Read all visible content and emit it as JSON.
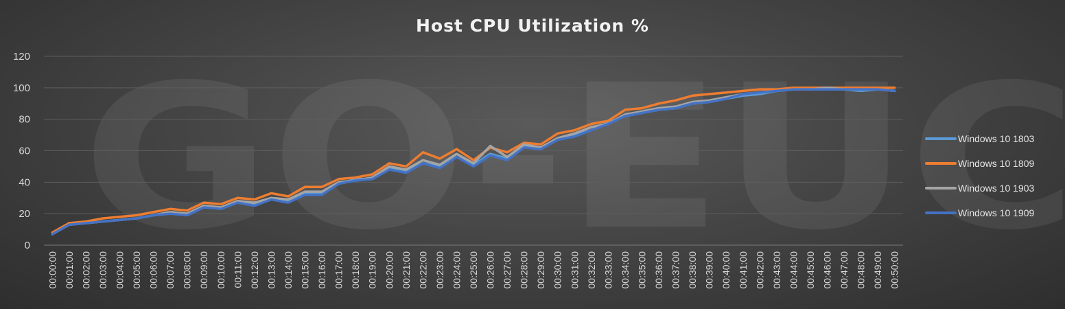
{
  "chart_data": {
    "type": "line",
    "title": "Host CPU Utilization %",
    "watermark": "GO-EUC",
    "xlabel": "",
    "ylabel": "",
    "ylim": [
      0,
      120
    ],
    "yticks": [
      0,
      20,
      40,
      60,
      80,
      100,
      120
    ],
    "grid": true,
    "legend": "right",
    "x": [
      "00:00:00",
      "00:01:00",
      "00:02:00",
      "00:03:00",
      "00:04:00",
      "00:05:00",
      "00:06:00",
      "00:07:00",
      "00:08:00",
      "00:09:00",
      "00:10:00",
      "00:11:00",
      "00:12:00",
      "00:13:00",
      "00:14:00",
      "00:15:00",
      "00:16:00",
      "00:17:00",
      "00:18:00",
      "00:19:00",
      "00:20:00",
      "00:21:00",
      "00:22:00",
      "00:23:00",
      "00:24:00",
      "00:25:00",
      "00:26:00",
      "00:27:00",
      "00:28:00",
      "00:29:00",
      "00:30:00",
      "00:31:00",
      "00:32:00",
      "00:33:00",
      "00:34:00",
      "00:35:00",
      "00:36:00",
      "00:37:00",
      "00:38:00",
      "00:39:00",
      "00:40:00",
      "00:41:00",
      "00:42:00",
      "00:43:00",
      "00:44:00",
      "00:45:00",
      "00:46:00",
      "00:47:00",
      "00:48:00",
      "00:49:00",
      "00:50:00"
    ],
    "series": [
      {
        "name": "Windows 10 1803",
        "color": "#5b9bd5",
        "values": [
          7,
          13,
          14,
          15,
          16,
          17,
          19,
          21,
          20,
          25,
          23,
          28,
          26,
          30,
          28,
          33,
          33,
          39,
          42,
          42,
          49,
          47,
          52,
          50,
          56,
          51,
          58,
          55,
          63,
          62,
          67,
          70,
          73,
          78,
          82,
          84,
          86,
          87,
          90,
          91,
          93,
          95,
          96,
          98,
          99,
          99,
          99,
          99,
          98,
          99,
          98
        ]
      },
      {
        "name": "Windows 10 1809",
        "color": "#ed7d31",
        "values": [
          8,
          14,
          15,
          17,
          18,
          19,
          21,
          23,
          22,
          27,
          26,
          30,
          29,
          33,
          31,
          37,
          37,
          42,
          43,
          45,
          52,
          50,
          59,
          55,
          61,
          54,
          62,
          59,
          65,
          64,
          71,
          73,
          77,
          79,
          86,
          87,
          90,
          92,
          95,
          96,
          97,
          98,
          99,
          99,
          100,
          100,
          100,
          100,
          100,
          100,
          100
        ]
      },
      {
        "name": "Windows 10 1903",
        "color": "#a5a5a5",
        "values": [
          7,
          13,
          14,
          15,
          16,
          17,
          19,
          21,
          20,
          25,
          24,
          28,
          27,
          30,
          29,
          34,
          34,
          40,
          41,
          43,
          50,
          48,
          54,
          51,
          58,
          52,
          63,
          56,
          64,
          62,
          68,
          71,
          75,
          77,
          83,
          85,
          87,
          88,
          91,
          92,
          94,
          96,
          97,
          98,
          99,
          99,
          100,
          99,
          99,
          99,
          98
        ]
      },
      {
        "name": "Windows 10 1909",
        "color": "#4472c4",
        "values": [
          7,
          13,
          14,
          15,
          16,
          17,
          19,
          20,
          19,
          24,
          23,
          27,
          25,
          29,
          27,
          32,
          32,
          39,
          41,
          42,
          48,
          46,
          52,
          49,
          56,
          50,
          57,
          54,
          62,
          61,
          67,
          69,
          73,
          77,
          82,
          84,
          86,
          87,
          90,
          91,
          93,
          96,
          97,
          98,
          99,
          99,
          99,
          99,
          99,
          99,
          98
        ]
      }
    ]
  }
}
